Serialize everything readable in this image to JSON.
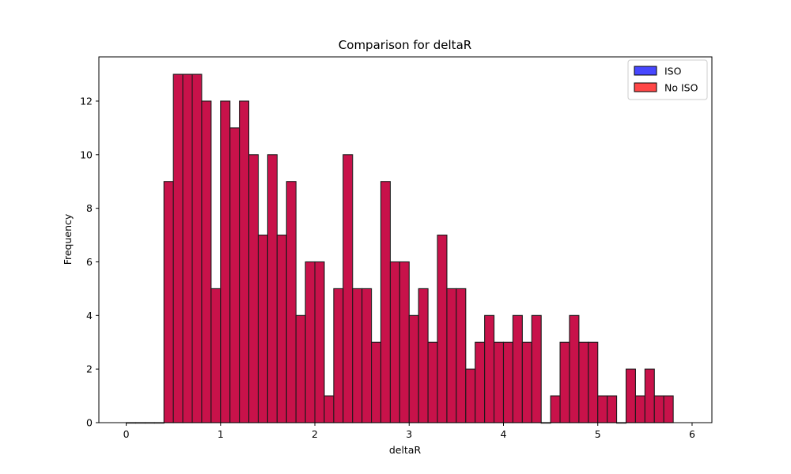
{
  "chart_data": {
    "type": "bar",
    "title": "Comparison for deltaR",
    "xlabel": "deltaR",
    "ylabel": "Frequency",
    "xlim": [
      -0.29,
      6.21
    ],
    "ylim": [
      0,
      13.65
    ],
    "xticks": [
      0,
      1,
      2,
      3,
      4,
      5,
      6
    ],
    "yticks": [
      0,
      2,
      4,
      6,
      8,
      10,
      12
    ],
    "bin_start": 0.0,
    "bin_width": 0.1,
    "grid": false,
    "legend_position": "top-right",
    "series": [
      {
        "name": "ISO",
        "color": "#0000ff",
        "values": [
          0,
          0,
          0,
          0,
          9,
          13,
          13,
          13,
          12,
          5,
          12,
          11,
          12,
          10,
          7,
          10,
          7,
          9,
          4,
          6,
          6,
          1,
          5,
          10,
          5,
          5,
          3,
          9,
          6,
          6,
          4,
          5,
          3,
          7,
          5,
          5,
          2,
          3,
          4,
          3,
          3,
          4,
          3,
          4,
          0,
          1,
          3,
          4,
          3,
          3,
          1,
          1,
          0,
          2,
          1,
          2,
          1,
          1
        ]
      },
      {
        "name": "No ISO",
        "color": "#ff0000",
        "values": [
          0,
          0,
          0,
          0,
          9,
          13,
          13,
          13,
          12,
          5,
          12,
          11,
          12,
          10,
          7,
          10,
          7,
          9,
          4,
          6,
          6,
          1,
          5,
          10,
          5,
          5,
          3,
          9,
          6,
          6,
          4,
          5,
          3,
          7,
          5,
          5,
          2,
          3,
          4,
          3,
          3,
          4,
          3,
          4,
          0,
          1,
          3,
          4,
          3,
          3,
          1,
          1,
          0,
          2,
          1,
          2,
          1,
          1
        ]
      }
    ],
    "overlap_color": "#c8124a"
  }
}
